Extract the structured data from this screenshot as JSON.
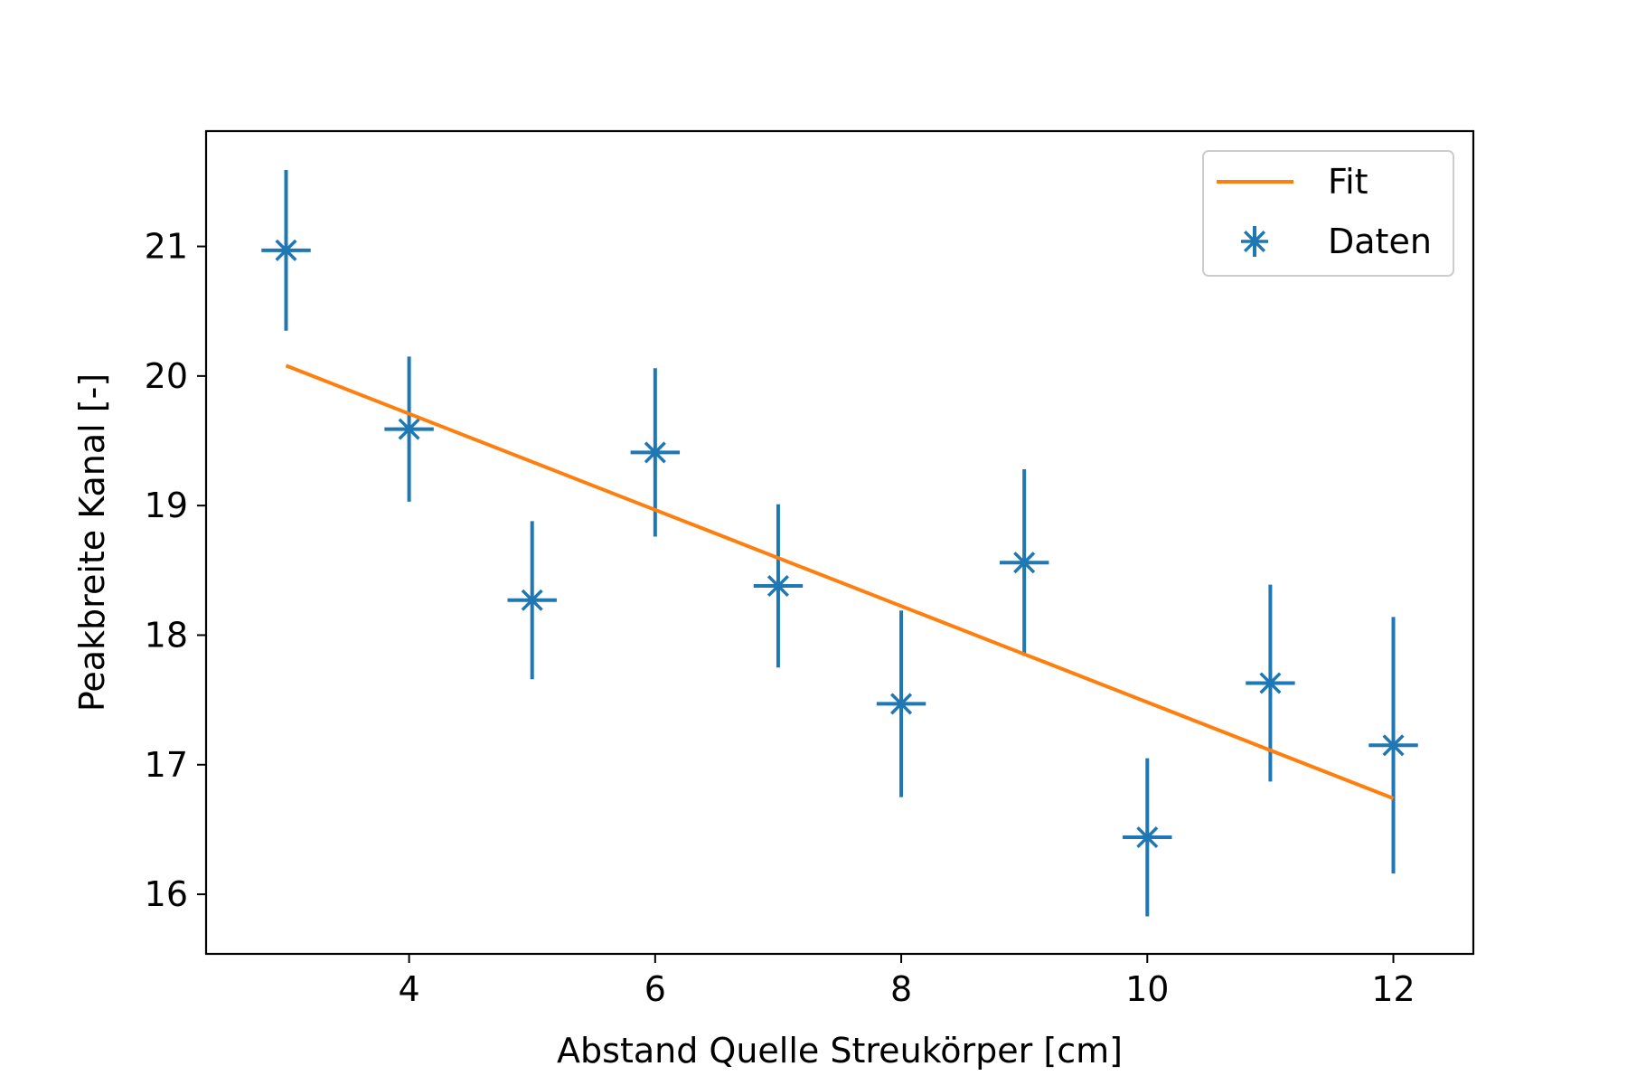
{
  "chart_data": {
    "type": "scatter",
    "title": "",
    "xlabel": "Abstand Quelle Streukörper [cm]",
    "ylabel": "Peakbreite Kanal [-]",
    "xlim": [
      2.35,
      12.65
    ],
    "ylim": [
      15.54,
      21.89
    ],
    "xticks": [
      4,
      6,
      8,
      10,
      12
    ],
    "yticks": [
      16,
      17,
      18,
      19,
      20,
      21
    ],
    "grid": false,
    "legend_position": "top-right",
    "series": [
      {
        "name": "Daten",
        "kind": "errorbar",
        "marker": "star",
        "color": "#1f77b4",
        "x": [
          3,
          4,
          5,
          6,
          7,
          8,
          9,
          10,
          11,
          12
        ],
        "y": [
          20.97,
          19.59,
          18.27,
          19.41,
          18.38,
          17.47,
          18.56,
          16.44,
          17.63,
          17.15
        ],
        "yerr": [
          0.62,
          0.56,
          0.61,
          0.65,
          0.63,
          0.72,
          0.72,
          0.61,
          0.76,
          0.99
        ],
        "xerr": [
          0.2,
          0.2,
          0.2,
          0.2,
          0.2,
          0.2,
          0.2,
          0.2,
          0.2,
          0.2
        ]
      },
      {
        "name": "Fit",
        "kind": "line",
        "color": "#ff7f0e",
        "x": [
          3,
          12
        ],
        "y": [
          20.08,
          16.74
        ]
      }
    ],
    "legend": [
      {
        "label": "Fit",
        "kind": "line",
        "color": "#ff7f0e"
      },
      {
        "label": "Daten",
        "kind": "errorbar",
        "color": "#1f77b4"
      }
    ]
  }
}
